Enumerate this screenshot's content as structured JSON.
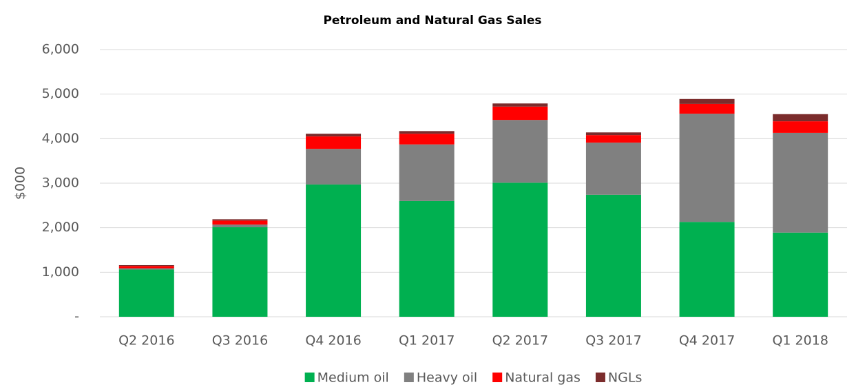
{
  "chart_data": {
    "type": "bar",
    "stacked": true,
    "title": "Petroleum and Natural Gas Sales",
    "y_label": "$000",
    "categories": [
      "Q2 2016",
      "Q3 2016",
      "Q4 2016",
      "Q1 2017",
      "Q2 2017",
      "Q3 2017",
      "Q4 2017",
      "Q1 2018"
    ],
    "series": [
      {
        "name": "Medium oil",
        "color": "#00b050",
        "values": [
          1060,
          2010,
          2970,
          2600,
          3010,
          2740,
          2130,
          1890
        ]
      },
      {
        "name": "Heavy oil",
        "color": "#808080",
        "values": [
          30,
          60,
          800,
          1270,
          1410,
          1170,
          2430,
          2240
        ]
      },
      {
        "name": "Natural gas",
        "color": "#ff0000",
        "values": [
          50,
          90,
          280,
          240,
          300,
          170,
          220,
          260
        ]
      },
      {
        "name": "NGLs",
        "color": "#7b2c2c",
        "values": [
          20,
          30,
          60,
          60,
          70,
          60,
          110,
          160
        ]
      }
    ],
    "ylim": [
      0,
      6000
    ],
    "yticks": [
      {
        "value": 0,
        "label": "-"
      },
      {
        "value": 1000,
        "label": "1,000"
      },
      {
        "value": 2000,
        "label": "2,000"
      },
      {
        "value": 3000,
        "label": "3,000"
      },
      {
        "value": 4000,
        "label": "4,000"
      },
      {
        "value": 5000,
        "label": "5,000"
      },
      {
        "value": 6000,
        "label": "6,000"
      }
    ],
    "grid": true,
    "legend": "bottom"
  }
}
